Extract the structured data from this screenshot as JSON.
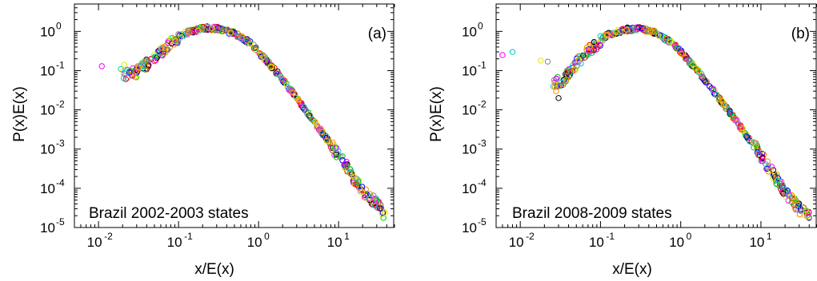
{
  "chart_data": [
    {
      "type": "scatter",
      "panel_label": "(a)",
      "annotation": "Brazil 2002-2003 states",
      "xlabel": "x/E(x)",
      "ylabel": "P(x)E(x)",
      "x_scale": "log",
      "y_scale": "log",
      "xlim": [
        0.005,
        50
      ],
      "ylim": [
        1e-05,
        5
      ],
      "x_ticks": [
        {
          "value": 0.01,
          "base": "10",
          "exp": "-2"
        },
        {
          "value": 0.1,
          "base": "10",
          "exp": "-1"
        },
        {
          "value": 1,
          "base": "10",
          "exp": "0"
        },
        {
          "value": 10,
          "base": "10",
          "exp": "1"
        }
      ],
      "y_ticks": [
        {
          "value": 1e-05,
          "base": "10",
          "exp": "-5"
        },
        {
          "value": 0.0001,
          "base": "10",
          "exp": "-4"
        },
        {
          "value": 0.001,
          "base": "10",
          "exp": "-3"
        },
        {
          "value": 0.01,
          "base": "10",
          "exp": "-2"
        },
        {
          "value": 0.1,
          "base": "10",
          "exp": "-1"
        },
        {
          "value": 1,
          "base": "10",
          "exp": "0"
        }
      ],
      "curve": [
        [
          0.02,
          0.08
        ],
        [
          0.03,
          0.09
        ],
        [
          0.05,
          0.2
        ],
        [
          0.08,
          0.5
        ],
        [
          0.12,
          0.9
        ],
        [
          0.2,
          1.2
        ],
        [
          0.3,
          1.2
        ],
        [
          0.5,
          0.9
        ],
        [
          0.8,
          0.5
        ],
        [
          1.0,
          0.3
        ],
        [
          1.5,
          0.12
        ],
        [
          2.0,
          0.06
        ],
        [
          3.0,
          0.02
        ],
        [
          4.0,
          0.009
        ],
        [
          6.0,
          0.003
        ],
        [
          8.0,
          0.0013
        ],
        [
          10,
          0.0007
        ],
        [
          15,
          0.0002
        ],
        [
          20,
          9e-05
        ],
        [
          30,
          4e-05
        ],
        [
          38,
          2e-05
        ]
      ],
      "outliers": [
        [
          0.011,
          0.13
        ],
        [
          0.019,
          0.11
        ],
        [
          0.021,
          0.14
        ]
      ],
      "n_series": 27,
      "marker": "open circle",
      "colors": [
        "#000000",
        "#ff0000",
        "#00cc00",
        "#0000ff",
        "#ff00ff",
        "#00cccc",
        "#e6e600",
        "#888888",
        "#ff8800"
      ],
      "grid": false,
      "legend": "none"
    },
    {
      "type": "scatter",
      "panel_label": "(b)",
      "annotation": "Brazil 2008-2009 states",
      "xlabel": "x/E(x)",
      "ylabel": "P(x)E(x)",
      "x_scale": "log",
      "y_scale": "log",
      "xlim": [
        0.005,
        50
      ],
      "ylim": [
        1e-05,
        5
      ],
      "x_ticks": [
        {
          "value": 0.01,
          "base": "10",
          "exp": "-2"
        },
        {
          "value": 0.1,
          "base": "10",
          "exp": "-1"
        },
        {
          "value": 1,
          "base": "10",
          "exp": "0"
        },
        {
          "value": 10,
          "base": "10",
          "exp": "1"
        }
      ],
      "y_ticks": [
        {
          "value": 1e-05,
          "base": "10",
          "exp": "-5"
        },
        {
          "value": 0.0001,
          "base": "10",
          "exp": "-4"
        },
        {
          "value": 0.001,
          "base": "10",
          "exp": "-3"
        },
        {
          "value": 0.01,
          "base": "10",
          "exp": "-2"
        },
        {
          "value": 0.1,
          "base": "10",
          "exp": "-1"
        },
        {
          "value": 1,
          "base": "10",
          "exp": "0"
        }
      ],
      "curve": [
        [
          0.025,
          0.05
        ],
        [
          0.035,
          0.06
        ],
        [
          0.05,
          0.15
        ],
        [
          0.08,
          0.4
        ],
        [
          0.12,
          0.8
        ],
        [
          0.2,
          1.1
        ],
        [
          0.3,
          1.2
        ],
        [
          0.5,
          0.9
        ],
        [
          0.8,
          0.5
        ],
        [
          1.0,
          0.3
        ],
        [
          1.5,
          0.12
        ],
        [
          2.0,
          0.06
        ],
        [
          3.0,
          0.02
        ],
        [
          4.0,
          0.009
        ],
        [
          6.0,
          0.003
        ],
        [
          8.0,
          0.0013
        ],
        [
          10,
          0.0007
        ],
        [
          15,
          0.0002
        ],
        [
          20,
          8e-05
        ],
        [
          30,
          3e-05
        ],
        [
          40,
          2e-05
        ]
      ],
      "outliers": [
        [
          0.006,
          0.25
        ],
        [
          0.008,
          0.3
        ],
        [
          0.018,
          0.18
        ],
        [
          0.022,
          0.17
        ],
        [
          0.028,
          0.03
        ],
        [
          0.03,
          0.02
        ]
      ],
      "n_series": 27,
      "marker": "open circle",
      "colors": [
        "#000000",
        "#ff0000",
        "#00cc00",
        "#0000ff",
        "#ff00ff",
        "#00cccc",
        "#e6e600",
        "#888888",
        "#ff8800"
      ],
      "grid": false,
      "legend": "none"
    }
  ]
}
